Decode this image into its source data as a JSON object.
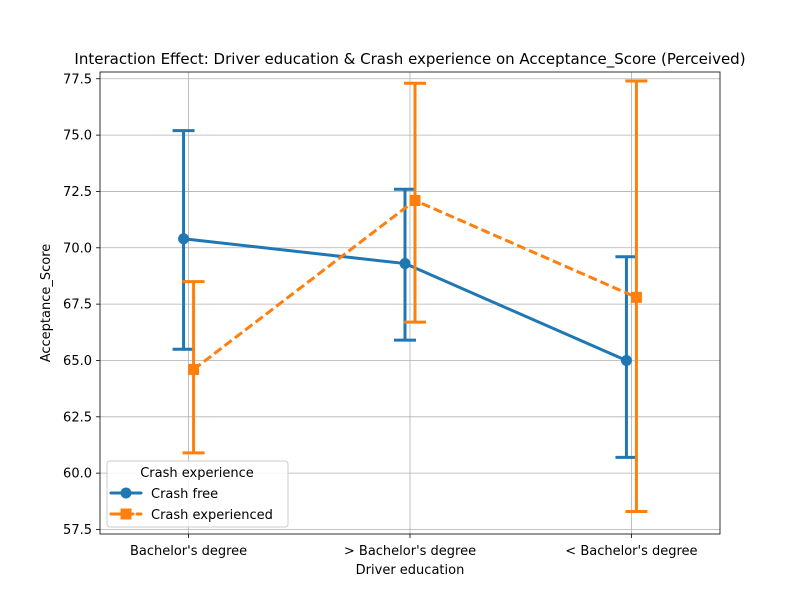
{
  "chart_data": {
    "type": "line",
    "title": "Interaction Effect: Driver education & Crash experience on Acceptance_Score (Perceived)",
    "xlabel": "Driver education",
    "ylabel": "Acceptance_Score",
    "categories": [
      "Bachelor's degree",
      "> Bachelor's degree",
      "< Bachelor's degree"
    ],
    "ylim": [
      57.3,
      77.8
    ],
    "yticks": [
      57.5,
      60.0,
      62.5,
      65.0,
      67.5,
      70.0,
      72.5,
      75.0,
      77.5
    ],
    "ytick_labels": [
      "57.5",
      "60.0",
      "62.5",
      "65.0",
      "67.5",
      "70.0",
      "72.5",
      "75.0",
      "77.5"
    ],
    "grid": true,
    "legend": {
      "title": "Crash experience",
      "position": "bottom-left"
    },
    "series": [
      {
        "name": "Crash free",
        "color": "#1f77b4",
        "marker": "circle",
        "linestyle": "solid",
        "values": [
          70.4,
          69.3,
          65.0
        ],
        "ci_low": [
          65.5,
          65.9,
          60.7
        ],
        "ci_high": [
          75.2,
          72.6,
          69.6
        ]
      },
      {
        "name": "Crash experienced",
        "color": "#ff7f0e",
        "marker": "square",
        "linestyle": "dashed",
        "values": [
          64.6,
          72.1,
          67.8
        ],
        "ci_low": [
          60.9,
          66.7,
          58.3
        ],
        "ci_high": [
          68.5,
          77.3,
          77.4
        ]
      }
    ]
  }
}
